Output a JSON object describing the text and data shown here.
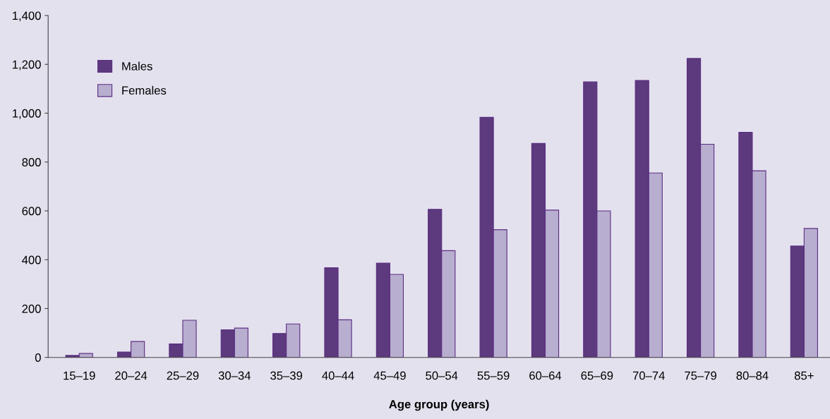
{
  "chart_data": {
    "type": "bar",
    "xlabel": "Age group (years)",
    "categories": [
      "15–19",
      "20–24",
      "25–29",
      "30–34",
      "35–39",
      "40–44",
      "45–49",
      "50–54",
      "55–59",
      "60–64",
      "65–69",
      "70–74",
      "75–79",
      "80–84",
      "85+"
    ],
    "series": [
      {
        "name": "Males",
        "color": "#5c3a7d",
        "values": [
          8,
          22,
          55,
          113,
          98,
          367,
          386,
          606,
          983,
          876,
          1128,
          1134,
          1224,
          922,
          456
        ]
      },
      {
        "name": "Females",
        "color": "#b8aecf",
        "values": [
          16,
          65,
          152,
          120,
          137,
          154,
          340,
          437,
          523,
          603,
          600,
          755,
          873,
          764,
          528
        ]
      }
    ],
    "ylim": [
      0,
      1400
    ],
    "yticks": [
      {
        "value": 0,
        "label": "0"
      },
      {
        "value": 200,
        "label": "200"
      },
      {
        "value": 400,
        "label": "400"
      },
      {
        "value": 600,
        "label": "600"
      },
      {
        "value": 800,
        "label": "800"
      },
      {
        "value": 1000,
        "label": "1,000"
      },
      {
        "value": 1200,
        "label": "1,200"
      },
      {
        "value": 1400,
        "label": "1,400"
      }
    ],
    "legend": "top left",
    "grid": false
  }
}
